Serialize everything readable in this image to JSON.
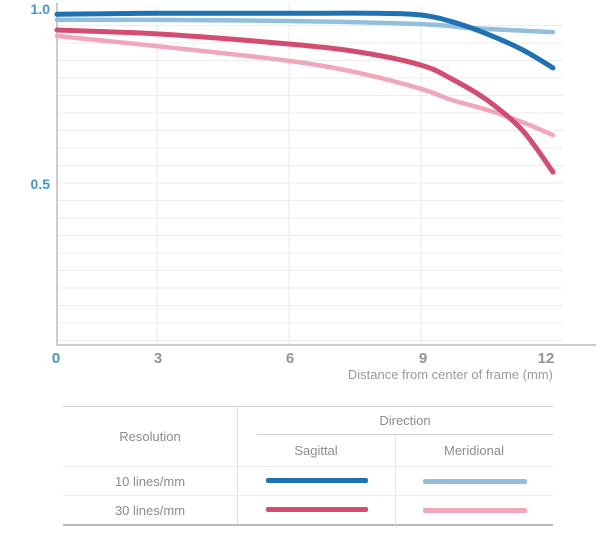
{
  "chart": {
    "y_tick_labels": [
      "1.0",
      "0.5"
    ],
    "x_tick_labels": [
      "0",
      "3",
      "6",
      "9",
      "12"
    ],
    "axis_title": "Distance from center of frame (mm)",
    "colors": {
      "axis_label_blue": "#4695cb",
      "tick_gray": "#949494",
      "gridline": "#ededed",
      "vertical_gridline": "#e8e8e8",
      "axis_line": "#cccccc"
    }
  },
  "chart_data": {
    "type": "line",
    "title": "",
    "xlabel": "Distance from center of frame (mm)",
    "ylabel": "",
    "xlim": [
      0,
      12
    ],
    "ylim": [
      0,
      1.0
    ],
    "x_ticks": [
      0,
      3,
      6,
      9,
      12
    ],
    "y_ticks": [
      0.5,
      1.0
    ],
    "grid": true,
    "legend_position": "table-below",
    "series": [
      {
        "name": "10 lines/mm Meridional",
        "color": "#93bfdf",
        "width": 4.5,
        "points": [
          [
            0,
            0.966
          ],
          [
            3,
            0.966
          ],
          [
            6,
            0.963
          ],
          [
            9,
            0.954
          ],
          [
            10.1,
            0.943
          ],
          [
            11,
            0.937
          ],
          [
            12,
            0.931
          ]
        ]
      },
      {
        "name": "10 lines/mm Sagittal",
        "color": "#1e72b4",
        "width": 5,
        "points": [
          [
            0,
            0.982
          ],
          [
            3,
            0.985
          ],
          [
            6,
            0.985
          ],
          [
            8,
            0.985
          ],
          [
            9,
            0.98
          ],
          [
            9.7,
            0.961
          ],
          [
            10.5,
            0.926
          ],
          [
            11.3,
            0.881
          ],
          [
            12,
            0.829
          ]
        ]
      },
      {
        "name": "30 lines/mm Meridional",
        "color": "#f1a7bb",
        "width": 4.5,
        "points": [
          [
            0,
            0.92
          ],
          [
            3,
            0.891
          ],
          [
            6,
            0.849
          ],
          [
            7.6,
            0.814
          ],
          [
            9,
            0.769
          ],
          [
            9.7,
            0.737
          ],
          [
            10.5,
            0.709
          ],
          [
            11.3,
            0.674
          ],
          [
            12,
            0.637
          ]
        ]
      },
      {
        "name": "30 lines/mm Sagittal",
        "color": "#d44d71",
        "width": 5,
        "points": [
          [
            0,
            0.937
          ],
          [
            3,
            0.926
          ],
          [
            6,
            0.897
          ],
          [
            7.6,
            0.874
          ],
          [
            9,
            0.837
          ],
          [
            9.7,
            0.797
          ],
          [
            10.5,
            0.737
          ],
          [
            11.3,
            0.651
          ],
          [
            12,
            0.531
          ]
        ]
      }
    ]
  },
  "legend": {
    "resolution_header": "Resolution",
    "direction_header": "Direction",
    "sagittal_header": "Sagittal",
    "meridional_header": "Meridional",
    "rows": [
      {
        "label": "10 lines/mm",
        "sagittal_color": "#1e72b4",
        "meridional_color": "#93bfdf"
      },
      {
        "label": "30 lines/mm",
        "sagittal_color": "#d44d71",
        "meridional_color": "#f1a7bb"
      }
    ]
  }
}
